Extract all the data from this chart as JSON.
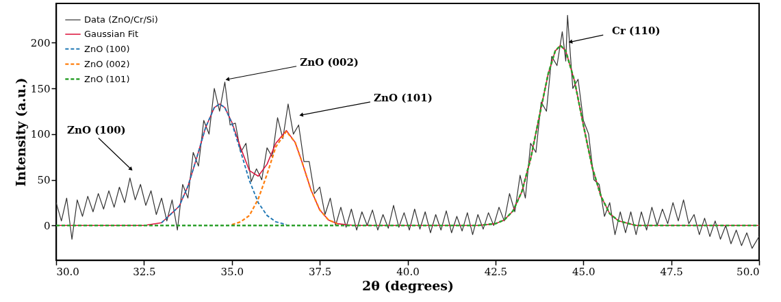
{
  "chart_data": {
    "type": "line",
    "xlabel": "2θ (degrees)",
    "ylabel": "Intensity (a.u.)",
    "xlim": [
      30,
      50
    ],
    "ylim": [
      -38,
      243
    ],
    "xticks": [
      {
        "value": 30,
        "label": "30.0"
      },
      {
        "value": 32.5,
        "label": "32.5"
      },
      {
        "value": 35,
        "label": "35.0"
      },
      {
        "value": 37.5,
        "label": "37.5"
      },
      {
        "value": 40,
        "label": "40.0"
      },
      {
        "value": 42.5,
        "label": "42.5"
      },
      {
        "value": 45,
        "label": "45.0"
      },
      {
        "value": 47.5,
        "label": "47.5"
      },
      {
        "value": 50,
        "label": "50.0"
      }
    ],
    "yticks": [
      0,
      50,
      100,
      150,
      200
    ],
    "grid": false,
    "legend": "top left",
    "marker": "none",
    "x": [
      30,
      32.5,
      33,
      33.5,
      33.75,
      34,
      34.25,
      34.5,
      34.65,
      34.8,
      35,
      35.25,
      35.5,
      35.75,
      36,
      36.25,
      36.55,
      36.8,
      37,
      37.25,
      37.5,
      37.75,
      38,
      38.5,
      42,
      42.5,
      42.75,
      43,
      43.25,
      43.5,
      43.75,
      44,
      44.2,
      44.35,
      44.5,
      44.75,
      45,
      45.25,
      45.5,
      45.75,
      46,
      46.5,
      50
    ],
    "series": [
      {
        "name": "Data (ZnO/Cr/Si)",
        "color": "#333333",
        "line_style": "solid",
        "x": [
          30.0,
          30.15,
          30.3,
          30.45,
          30.6,
          30.75,
          30.9,
          31.05,
          31.2,
          31.35,
          31.5,
          31.65,
          31.8,
          31.95,
          32.1,
          32.25,
          32.4,
          32.55,
          32.7,
          32.85,
          33.0,
          33.15,
          33.3,
          33.45,
          33.6,
          33.75,
          33.9,
          34.05,
          34.2,
          34.35,
          34.5,
          34.65,
          34.8,
          34.95,
          35.1,
          35.25,
          35.4,
          35.55,
          35.7,
          35.85,
          36.0,
          36.15,
          36.3,
          36.45,
          36.6,
          36.75,
          36.9,
          37.05,
          37.2,
          37.35,
          37.5,
          37.65,
          37.8,
          37.95,
          38.1,
          38.25,
          38.4,
          38.55,
          38.7,
          38.85,
          39.0,
          39.15,
          39.3,
          39.45,
          39.6,
          39.75,
          39.9,
          40.05,
          40.2,
          40.35,
          40.5,
          40.65,
          40.8,
          40.95,
          41.1,
          41.25,
          41.4,
          41.55,
          41.7,
          41.85,
          42.0,
          42.15,
          42.3,
          42.45,
          42.6,
          42.75,
          42.9,
          43.05,
          43.2,
          43.35,
          43.5,
          43.65,
          43.8,
          43.95,
          44.1,
          44.25,
          44.4,
          44.5,
          44.55,
          44.7,
          44.85,
          45.0,
          45.15,
          45.3,
          45.45,
          45.6,
          45.75,
          45.9,
          46.05,
          46.2,
          46.35,
          46.5,
          46.65,
          46.8,
          46.95,
          47.1,
          47.25,
          47.4,
          47.55,
          47.7,
          47.85,
          48.0,
          48.15,
          48.3,
          48.45,
          48.6,
          48.75,
          48.9,
          49.05,
          49.2,
          49.35,
          49.5,
          49.65,
          49.8,
          50.0
        ],
        "values": [
          25,
          5,
          30,
          -15,
          28,
          10,
          32,
          15,
          35,
          18,
          38,
          20,
          42,
          25,
          52,
          28,
          45,
          22,
          38,
          12,
          30,
          5,
          28,
          -5,
          45,
          30,
          80,
          65,
          115,
          100,
          150,
          125,
          157,
          110,
          112,
          80,
          90,
          48,
          62,
          50,
          85,
          75,
          118,
          95,
          133,
          100,
          110,
          70,
          70,
          35,
          42,
          12,
          30,
          0,
          20,
          -2,
          18,
          -5,
          15,
          0,
          17,
          -5,
          12,
          -3,
          22,
          -2,
          14,
          -5,
          18,
          -4,
          15,
          -8,
          12,
          -5,
          16,
          -8,
          10,
          -6,
          14,
          -10,
          12,
          -4,
          14,
          0,
          20,
          5,
          35,
          15,
          55,
          30,
          90,
          80,
          135,
          125,
          185,
          175,
          212,
          180,
          230,
          150,
          160,
          115,
          100,
          50,
          45,
          10,
          25,
          -10,
          15,
          -8,
          15,
          -10,
          15,
          -5,
          20,
          0,
          18,
          2,
          25,
          5,
          28,
          2,
          12,
          -10,
          8,
          -12,
          5,
          -15,
          0,
          -20,
          -5,
          -22,
          -8,
          -25,
          -12
        ]
      },
      {
        "name": "Gaussian Fit",
        "color": "#dc143c",
        "line_style": "solid",
        "values": [
          0,
          0,
          3,
          21,
          43,
          74,
          107,
          129,
          133,
          129,
          113,
          85,
          60,
          54,
          67,
          90,
          104,
          91,
          69,
          39,
          17,
          6,
          2,
          0,
          0,
          2,
          6,
          16,
          37,
          73,
          120,
          166,
          191,
          197,
          191,
          158,
          110,
          64,
          32,
          13,
          5,
          0,
          0
        ]
      },
      {
        "name": "ZnO (100)",
        "color": "#1f77b4",
        "line_style": "dashed",
        "x": [
          33,
          33.5,
          33.75,
          34,
          34.25,
          34.5,
          34.65,
          34.8,
          35,
          35.25,
          35.5,
          35.75,
          36,
          36.25,
          36.55
        ],
        "values": [
          3,
          21,
          43,
          74,
          107,
          129,
          133,
          129,
          112,
          81,
          49,
          25,
          11,
          4,
          1
        ]
      },
      {
        "name": "ZnO (002)",
        "color": "#ff7f0e",
        "line_style": "dashed",
        "x": [
          35,
          35.25,
          35.5,
          35.75,
          36,
          36.25,
          36.55,
          36.8,
          37,
          37.25,
          37.5,
          37.75,
          38
        ],
        "values": [
          1,
          4,
          11,
          29,
          56,
          86,
          103,
          91,
          69,
          39,
          17,
          6,
          2
        ]
      },
      {
        "name": "ZnO (101)",
        "color": "#2ca02c",
        "line_style": "dashed",
        "values": [
          0,
          0,
          0,
          0,
          0,
          0,
          0,
          0,
          0,
          0,
          0,
          0,
          0,
          0,
          0,
          0,
          0,
          0,
          0,
          0,
          0,
          0,
          0,
          0,
          0,
          2,
          6,
          16,
          37,
          73,
          120,
          166,
          191,
          197,
          191,
          158,
          110,
          64,
          32,
          13,
          5,
          0,
          0
        ]
      }
    ],
    "annotations": [
      {
        "text": "ZnO (100)",
        "x": 32.12,
        "y": 62
      },
      {
        "text": "ZnO (002)",
        "x": 34.89,
        "y": 160
      },
      {
        "text": "ZnO (101)",
        "x": 36.99,
        "y": 121
      },
      {
        "text": "Cr (110)",
        "x": 44.65,
        "y": 201
      }
    ]
  }
}
